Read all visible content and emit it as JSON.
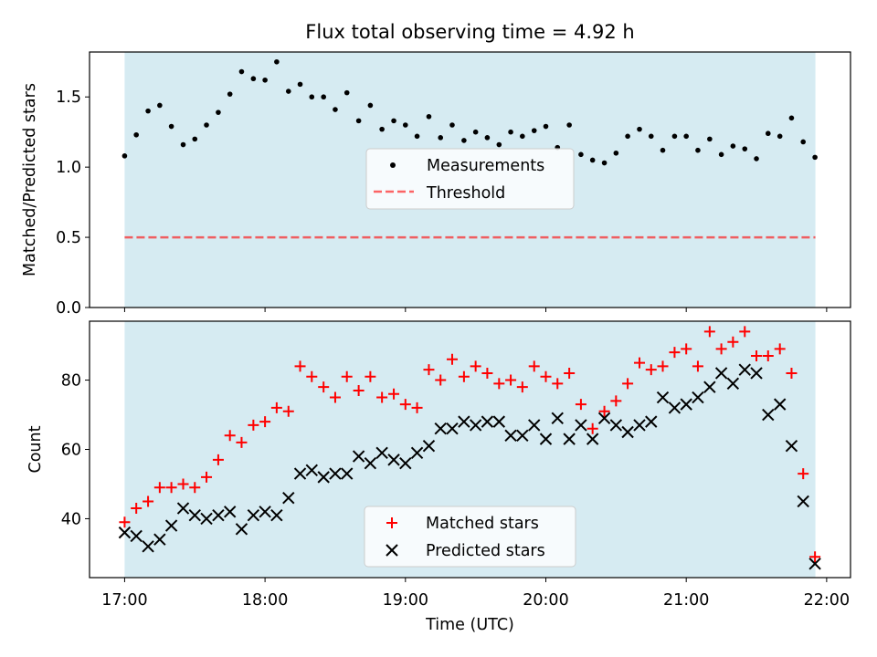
{
  "chart_data": [
    {
      "type": "scatter",
      "title": "Flux total observing time = 4.92 h",
      "xlabel": "",
      "ylabel": "Matched/Predicted stars",
      "xlim": [
        16.75,
        22.17
      ],
      "ylim": [
        0,
        1.82
      ],
      "yticks": [
        0.0,
        0.5,
        1.0,
        1.5
      ],
      "ytick_labels": [
        "0.0",
        "0.5",
        "1.0",
        "1.5"
      ],
      "xticks": [
        17,
        18,
        19,
        20,
        21,
        22
      ],
      "observing_span": [
        17.0,
        21.92
      ],
      "threshold": 0.5,
      "legend": {
        "position": "center",
        "entries": [
          "Measurements",
          "Threshold"
        ]
      },
      "series": [
        {
          "name": "Measurements",
          "x": [
            17.0,
            17.083,
            17.167,
            17.25,
            17.333,
            17.417,
            17.5,
            17.583,
            17.667,
            17.75,
            17.833,
            17.917,
            18.0,
            18.083,
            18.167,
            18.25,
            18.333,
            18.417,
            18.5,
            18.583,
            18.667,
            18.75,
            18.833,
            18.917,
            19.0,
            19.083,
            19.167,
            19.25,
            19.333,
            19.417,
            19.5,
            19.583,
            19.667,
            19.75,
            19.833,
            19.917,
            20.0,
            20.083,
            20.167,
            20.25,
            20.333,
            20.417,
            20.5,
            20.583,
            20.667,
            20.75,
            20.833,
            20.917,
            21.0,
            21.083,
            21.167,
            21.25,
            21.333,
            21.417,
            21.5,
            21.583,
            21.667,
            21.75,
            21.833,
            21.917
          ],
          "y": [
            1.08,
            1.23,
            1.4,
            1.44,
            1.29,
            1.16,
            1.2,
            1.3,
            1.39,
            1.52,
            1.68,
            1.63,
            1.62,
            1.75,
            1.54,
            1.59,
            1.5,
            1.5,
            1.41,
            1.53,
            1.33,
            1.44,
            1.27,
            1.33,
            1.3,
            1.22,
            1.36,
            1.21,
            1.3,
            1.19,
            1.25,
            1.21,
            1.16,
            1.25,
            1.22,
            1.26,
            1.29,
            1.14,
            1.3,
            1.09,
            1.05,
            1.03,
            1.1,
            1.22,
            1.27,
            1.22,
            1.12,
            1.22,
            1.22,
            1.12,
            1.2,
            1.09,
            1.15,
            1.13,
            1.06,
            1.24,
            1.22,
            1.35,
            1.18,
            1.07
          ]
        }
      ]
    },
    {
      "type": "scatter",
      "title": "",
      "xlabel": "Time (UTC)",
      "ylabel": "Count",
      "xlim": [
        16.75,
        22.17
      ],
      "ylim": [
        23,
        97
      ],
      "yticks": [
        40,
        60,
        80
      ],
      "xticks": [
        17,
        18,
        19,
        20,
        21,
        22
      ],
      "xtick_labels": [
        "17:00",
        "18:00",
        "19:00",
        "20:00",
        "21:00",
        "22:00"
      ],
      "observing_span": [
        17.0,
        21.92
      ],
      "legend": {
        "position": "lower center",
        "entries": [
          "Matched stars",
          "Predicted stars"
        ]
      },
      "x": [
        17.0,
        17.083,
        17.167,
        17.25,
        17.333,
        17.417,
        17.5,
        17.583,
        17.667,
        17.75,
        17.833,
        17.917,
        18.0,
        18.083,
        18.167,
        18.25,
        18.333,
        18.417,
        18.5,
        18.583,
        18.667,
        18.75,
        18.833,
        18.917,
        19.0,
        19.083,
        19.167,
        19.25,
        19.333,
        19.417,
        19.5,
        19.583,
        19.667,
        19.75,
        19.833,
        19.917,
        20.0,
        20.083,
        20.167,
        20.25,
        20.333,
        20.417,
        20.5,
        20.583,
        20.667,
        20.75,
        20.833,
        20.917,
        21.0,
        21.083,
        21.167,
        21.25,
        21.333,
        21.417,
        21.5,
        21.583,
        21.667,
        21.75,
        21.833,
        21.917
      ],
      "series": [
        {
          "name": "Matched stars",
          "marker": "+",
          "color": "#ff0000",
          "values": [
            39,
            43,
            45,
            49,
            49,
            50,
            49,
            52,
            57,
            64,
            62,
            67,
            68,
            72,
            71,
            84,
            81,
            78,
            75,
            81,
            77,
            81,
            75,
            76,
            73,
            72,
            83,
            80,
            86,
            81,
            84,
            82,
            79,
            80,
            78,
            84,
            81,
            79,
            82,
            73,
            66,
            71,
            74,
            79,
            85,
            83,
            84,
            88,
            89,
            84,
            94,
            89,
            91,
            94,
            87,
            87,
            89,
            82,
            53,
            29
          ]
        },
        {
          "name": "Predicted stars",
          "marker": "x",
          "color": "#000000",
          "values": [
            36,
            35,
            32,
            34,
            38,
            43,
            41,
            40,
            41,
            42,
            37,
            41,
            42,
            41,
            46,
            53,
            54,
            52,
            53,
            53,
            58,
            56,
            59,
            57,
            56,
            59,
            61,
            66,
            66,
            68,
            67,
            68,
            68,
            64,
            64,
            67,
            63,
            69,
            63,
            67,
            63,
            69,
            67,
            65,
            67,
            68,
            75,
            72,
            73,
            75,
            78,
            82,
            79,
            83,
            82,
            70,
            73,
            61,
            45,
            27
          ]
        }
      ]
    }
  ],
  "colors": {
    "span_fill": "#add8e6",
    "span_alpha": 0.5,
    "threshold": "#ff0000",
    "threshold_alpha": 0.6,
    "measurement": "#000000"
  }
}
